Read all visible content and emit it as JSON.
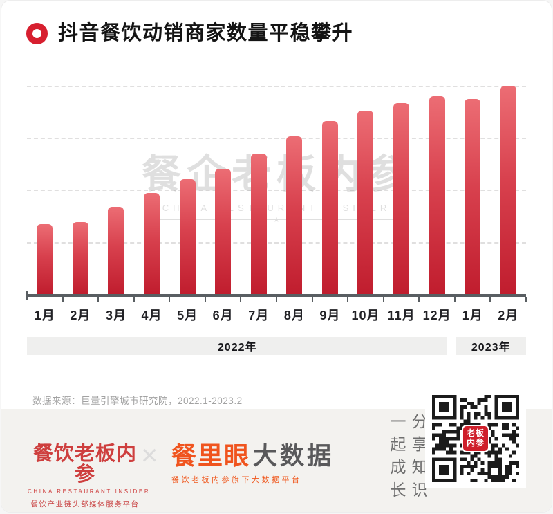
{
  "page": {
    "title": "抖音餐饮动销商家数量平稳攀升"
  },
  "chart_data": {
    "type": "bar",
    "title": "抖音餐饮动销商家数量平稳攀升",
    "categories": [
      "1月",
      "2月",
      "3月",
      "4月",
      "5月",
      "6月",
      "7月",
      "8月",
      "9月",
      "10月",
      "11月",
      "12月",
      "1月",
      "2月"
    ],
    "values": [
      33.6,
      34.6,
      41.9,
      48.5,
      55.1,
      60.1,
      67.4,
      75.7,
      83.1,
      88.0,
      91.7,
      95.0,
      93.7,
      100
    ],
    "value_note": "no numeric y-axis shown in source; values are relative bar heights as % of tallest bar (2023-02 = 100)",
    "xlabel": "",
    "ylabel": "",
    "ylim": [
      0,
      100
    ],
    "gridlines_at": [
      25,
      50,
      75,
      100
    ],
    "grid_style": "dashed horizontal, no y tick labels",
    "legend": "none",
    "year_groups": [
      {
        "label": "2022年",
        "span_months": 12
      },
      {
        "label": "2023年",
        "span_months": 2
      }
    ],
    "bar_color_top": "#ec6d74",
    "bar_color_bottom": "#c01d2e",
    "axis_color": "#595e62"
  },
  "watermark": {
    "cn": "餐企老板内参",
    "en": "CHINA RESTAURANT INSIDER",
    "star": "★"
  },
  "source": {
    "text": "数据来源：巨量引擎城市研究院，2022.1-2023.2"
  },
  "footer": {
    "brand_left": {
      "name": "餐饮老板内参",
      "en": "CHINA RESTAURANT INSIDER",
      "slogan": "餐饮产业链头部媒体服务平台"
    },
    "separator": "×",
    "brand_right": {
      "name": "餐里眼",
      "suffix": "大数据",
      "slogan": "餐饮老板内参旗下大数据平台"
    },
    "share_col_right": "分享知识",
    "share_col_left": "一起成长",
    "qr_logo_text_line1": "老板",
    "qr_logo_text_line2": "内参"
  },
  "colors": {
    "accent_red": "#d71f2f",
    "brand_red": "#ce3f3e",
    "brand_orange": "#f0541e",
    "footer_bg": "#f3f2ef",
    "band_bg": "#efefee"
  }
}
